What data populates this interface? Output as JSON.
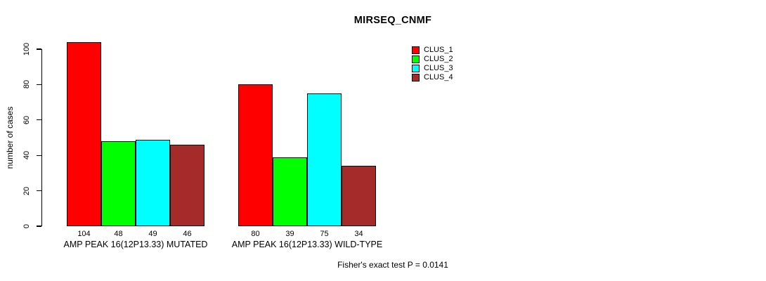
{
  "title": "MIRSEQ_CNMF",
  "chart_data": {
    "type": "bar",
    "title": "MIRSEQ_CNMF",
    "categories": [
      "AMP PEAK 16(12P13.33) MUTATED",
      "AMP PEAK 16(12P13.33) WILD-TYPE"
    ],
    "series": [
      {
        "name": "CLUS_1",
        "color": "#ff0000",
        "values": [
          104,
          80
        ]
      },
      {
        "name": "CLUS_2",
        "color": "#00ff00",
        "values": [
          48,
          39
        ]
      },
      {
        "name": "CLUS_3",
        "color": "#00ffff",
        "values": [
          49,
          75
        ]
      },
      {
        "name": "CLUS_4",
        "color": "#a52a2a",
        "values": [
          46,
          34
        ]
      }
    ],
    "xlabel": "",
    "ylabel": "number of cases",
    "ylim": [
      0,
      100
    ],
    "yticks": [
      0,
      20,
      40,
      60,
      80,
      100
    ],
    "bar_value_labels_shown": true,
    "grid": false,
    "legend_position": "top-right",
    "legend_entries": [
      "CLUS_1",
      "CLUS_2",
      "CLUS_3",
      "CLUS_4"
    ],
    "annotation": "Fisher's exact test P = 0.0141"
  }
}
